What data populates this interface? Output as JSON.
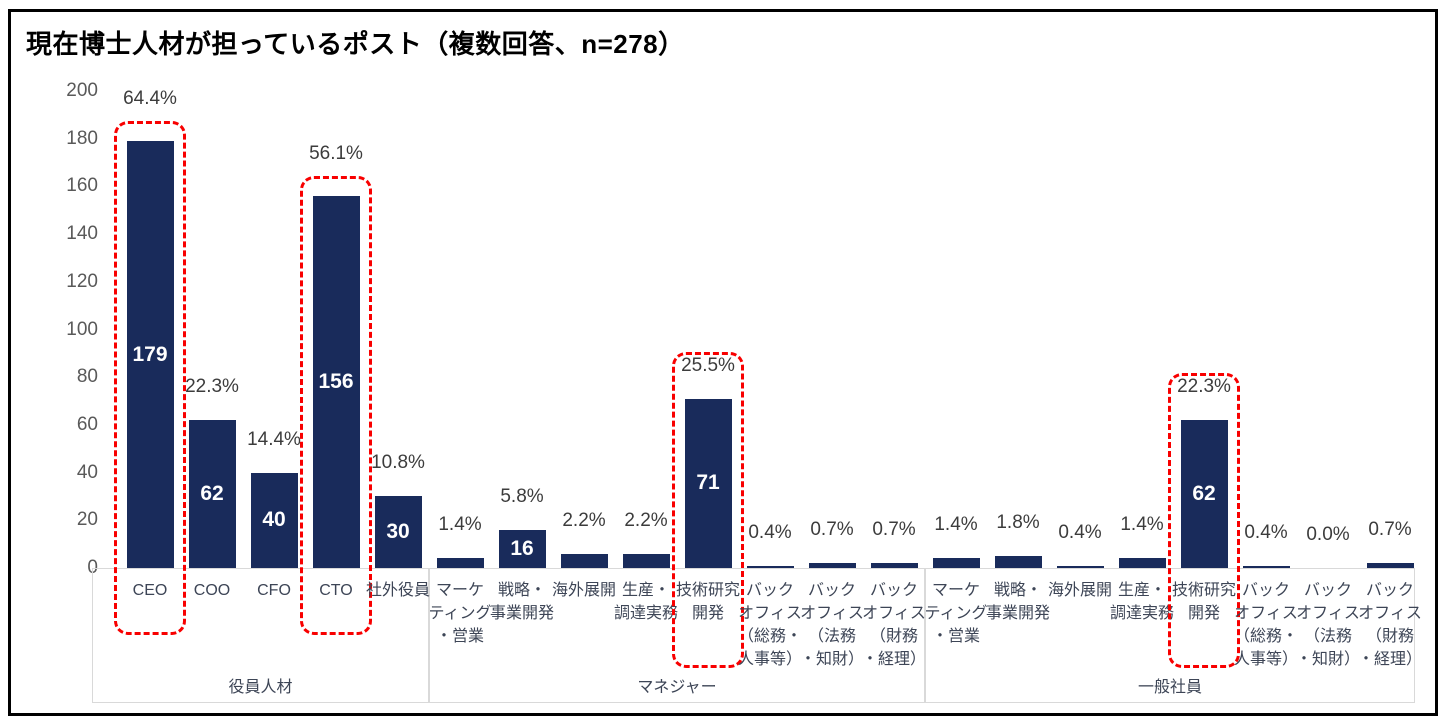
{
  "colors": {
    "bar": "#192b5b",
    "highlight_dash": "#f80000",
    "axis_text": "#595959",
    "percent_text": "#3c3c3c",
    "category_text": "#3d4556",
    "box_border": "#d9d9d9",
    "count_text": "#ffffff"
  },
  "chart_data": {
    "type": "bar",
    "title": "現在博士人材が担っているポスト（複数回答、n=278）",
    "n": 278,
    "ylim": [
      0,
      200
    ],
    "ytick_step": 20,
    "grid": false,
    "legend": false,
    "groups": [
      {
        "label": "役員人材",
        "items": [
          {
            "label": "CEO",
            "lines": [
              "CEO"
            ],
            "value": 179,
            "pct": "64.4%",
            "show_count": true,
            "highlighted": true,
            "highlight_label_pos": "outside"
          },
          {
            "label": "COO",
            "lines": [
              "COO"
            ],
            "value": 62,
            "pct": "22.3%",
            "show_count": true,
            "highlighted": false
          },
          {
            "label": "CFO",
            "lines": [
              "CFO"
            ],
            "value": 40,
            "pct": "14.4%",
            "show_count": true,
            "highlighted": false
          },
          {
            "label": "CTO",
            "lines": [
              "CTO"
            ],
            "value": 156,
            "pct": "56.1%",
            "show_count": true,
            "highlighted": true,
            "highlight_label_pos": "outside"
          },
          {
            "label": "社外役員",
            "lines": [
              "社外役員"
            ],
            "value": 30,
            "pct": "10.8%",
            "show_count": true,
            "highlighted": false
          }
        ]
      },
      {
        "label": "マネジャー",
        "items": [
          {
            "label": "マーケティング・営業",
            "lines": [
              "マーケ",
              "ティング",
              "・営業"
            ],
            "value": 4,
            "pct": "1.4%",
            "show_count": false,
            "highlighted": false
          },
          {
            "label": "戦略・事業開発",
            "lines": [
              "戦略・",
              "事業開発"
            ],
            "value": 16,
            "pct": "5.8%",
            "show_count": true,
            "highlighted": false
          },
          {
            "label": "海外展開",
            "lines": [
              "海外展開"
            ],
            "value": 6,
            "pct": "2.2%",
            "show_count": false,
            "highlighted": false
          },
          {
            "label": "生産・調達実務",
            "lines": [
              "生産・",
              "調達実務"
            ],
            "value": 6,
            "pct": "2.2%",
            "show_count": false,
            "highlighted": false
          },
          {
            "label": "技術研究開発",
            "lines": [
              "技術研究",
              "開発"
            ],
            "value": 71,
            "pct": "25.5%",
            "show_count": true,
            "highlighted": true,
            "highlight_label_pos": "inside"
          },
          {
            "label": "バックオフィス（総務・人事等）",
            "lines": [
              "バック",
              "オフィス",
              "（総務・",
              "人事等）"
            ],
            "value": 1,
            "pct": "0.4%",
            "show_count": false,
            "highlighted": false
          },
          {
            "label": "バックオフィス（法務・知財）",
            "lines": [
              "バック",
              "オフィス",
              "（法務",
              "・知財）"
            ],
            "value": 2,
            "pct": "0.7%",
            "show_count": false,
            "highlighted": false
          },
          {
            "label": "バックオフィス（財務・経理）",
            "lines": [
              "バック",
              "オフィス",
              "（財務",
              "・経理）"
            ],
            "value": 2,
            "pct": "0.7%",
            "show_count": false,
            "highlighted": false
          }
        ]
      },
      {
        "label": "一般社員",
        "items": [
          {
            "label": "マーケティング・営業",
            "lines": [
              "マーケ",
              "ティング",
              "・営業"
            ],
            "value": 4,
            "pct": "1.4%",
            "show_count": false,
            "highlighted": false
          },
          {
            "label": "戦略・事業開発",
            "lines": [
              "戦略・",
              "事業開発"
            ],
            "value": 5,
            "pct": "1.8%",
            "show_count": false,
            "highlighted": false
          },
          {
            "label": "海外展開",
            "lines": [
              "海外展開"
            ],
            "value": 1,
            "pct": "0.4%",
            "show_count": false,
            "highlighted": false
          },
          {
            "label": "生産・調達実務",
            "lines": [
              "生産・",
              "調達実務"
            ],
            "value": 4,
            "pct": "1.4%",
            "show_count": false,
            "highlighted": false
          },
          {
            "label": "技術研究開発",
            "lines": [
              "技術研究",
              "開発"
            ],
            "value": 62,
            "pct": "22.3%",
            "show_count": true,
            "highlighted": true,
            "highlight_label_pos": "inside"
          },
          {
            "label": "バックオフィス（総務・人事等）",
            "lines": [
              "バック",
              "オフィス",
              "（総務・",
              "人事等）"
            ],
            "value": 1,
            "pct": "0.4%",
            "show_count": false,
            "highlighted": false
          },
          {
            "label": "バックオフィス（法務・知財）",
            "lines": [
              "バック",
              "オフィス",
              "（法務",
              "・知財）"
            ],
            "value": 0,
            "pct": "0.0%",
            "show_count": false,
            "highlighted": false
          },
          {
            "label": "バックオフィス（財務・経理）",
            "lines": [
              "バック",
              "オフィス",
              "（財務",
              "・経理）"
            ],
            "value": 2,
            "pct": "0.7%",
            "show_count": false,
            "highlighted": false
          }
        ]
      }
    ]
  }
}
